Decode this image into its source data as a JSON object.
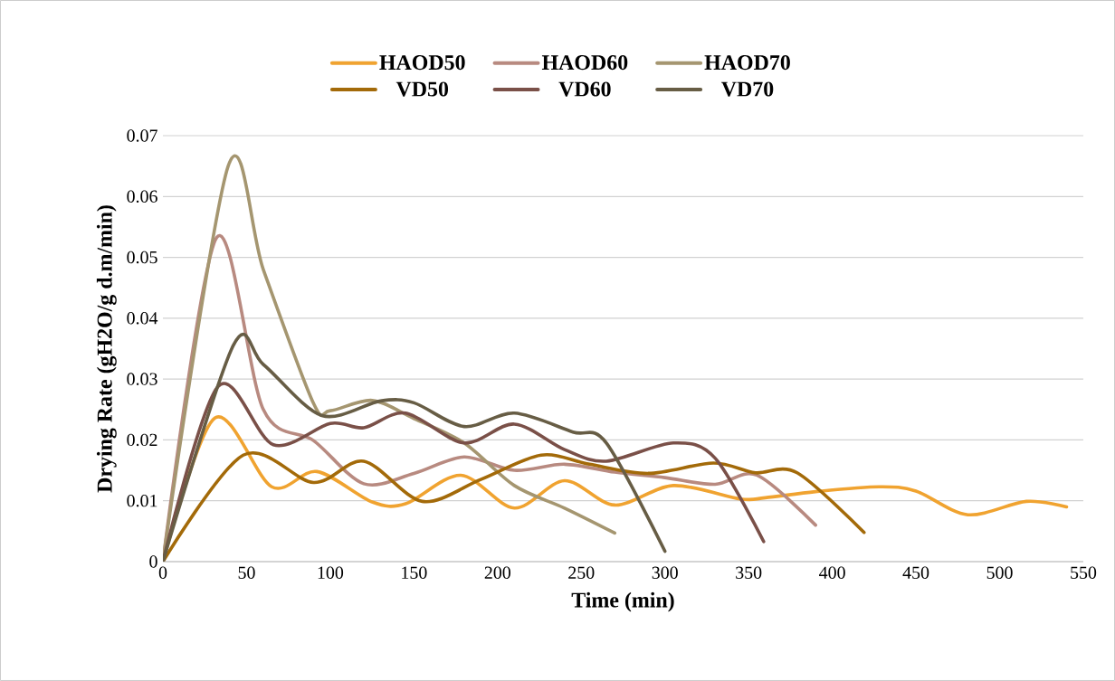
{
  "chart_data": {
    "type": "line",
    "xlabel": "Time (min)",
    "ylabel": "Drying Rate (gH2O/g d.m/min)",
    "xlim": [
      0,
      550
    ],
    "xticks": [
      0,
      50,
      100,
      150,
      200,
      250,
      300,
      350,
      400,
      450,
      500,
      550
    ],
    "ylim": [
      0,
      0.07
    ],
    "yticks": [
      0,
      0.01,
      0.02,
      0.03,
      0.04,
      0.05,
      0.06,
      0.07
    ],
    "grid": "y",
    "legend": "top",
    "marker": "none",
    "line_style": "solid",
    "series": [
      {
        "name": "HAOD50",
        "color": "#f0a330",
        "x": [
          0,
          31,
          65,
          92,
          125,
          145,
          178,
          210,
          240,
          270,
          305,
          345,
          360,
          390,
          428,
          450,
          481,
          516,
          540
        ],
        "values": [
          0,
          0.0236,
          0.0123,
          0.0148,
          0.0098,
          0.0095,
          0.0142,
          0.0088,
          0.0133,
          0.0093,
          0.0125,
          0.0103,
          0.0105,
          0.0115,
          0.0123,
          0.0116,
          0.0077,
          0.0099,
          0.009
        ]
      },
      {
        "name": "HAOD60",
        "color": "#b88a80",
        "x": [
          0,
          32,
          60,
          90,
          120,
          150,
          180,
          210,
          240,
          270,
          300,
          330,
          355,
          390
        ],
        "values": [
          0,
          0.0532,
          0.025,
          0.0199,
          0.0128,
          0.0145,
          0.0172,
          0.015,
          0.016,
          0.0147,
          0.0138,
          0.0127,
          0.0142,
          0.006
        ]
      },
      {
        "name": "HAOD70",
        "color": "#a59670",
        "x": [
          0,
          39,
          60,
          90,
          100,
          125,
          150,
          180,
          210,
          240,
          270
        ],
        "values": [
          0,
          0.065,
          0.048,
          0.026,
          0.0248,
          0.0265,
          0.0235,
          0.0195,
          0.0125,
          0.0088,
          0.0047
        ]
      },
      {
        "name": "VD50",
        "color": "#a36a09",
        "x": [
          0,
          48,
          90,
          120,
          155,
          190,
          226,
          255,
          290,
          329,
          354,
          379,
          419
        ],
        "values": [
          0,
          0.0175,
          0.013,
          0.0165,
          0.0099,
          0.0135,
          0.0175,
          0.016,
          0.0145,
          0.0162,
          0.0146,
          0.0146,
          0.0048
        ]
      },
      {
        "name": "VD60",
        "color": "#7a5048",
        "x": [
          0,
          33,
          66,
          100,
          120,
          145,
          180,
          210,
          240,
          265,
          305,
          330,
          359
        ],
        "values": [
          0,
          0.0288,
          0.0192,
          0.0227,
          0.022,
          0.0244,
          0.0195,
          0.0226,
          0.0184,
          0.0165,
          0.0195,
          0.017,
          0.0033
        ]
      },
      {
        "name": "VD70",
        "color": "#675d45",
        "x": [
          0,
          42,
          60,
          95,
          130,
          150,
          180,
          210,
          245,
          265,
          300
        ],
        "values": [
          0,
          0.0355,
          0.0324,
          0.024,
          0.0264,
          0.0261,
          0.0222,
          0.0244,
          0.0213,
          0.0195,
          0.0017
        ]
      }
    ]
  }
}
